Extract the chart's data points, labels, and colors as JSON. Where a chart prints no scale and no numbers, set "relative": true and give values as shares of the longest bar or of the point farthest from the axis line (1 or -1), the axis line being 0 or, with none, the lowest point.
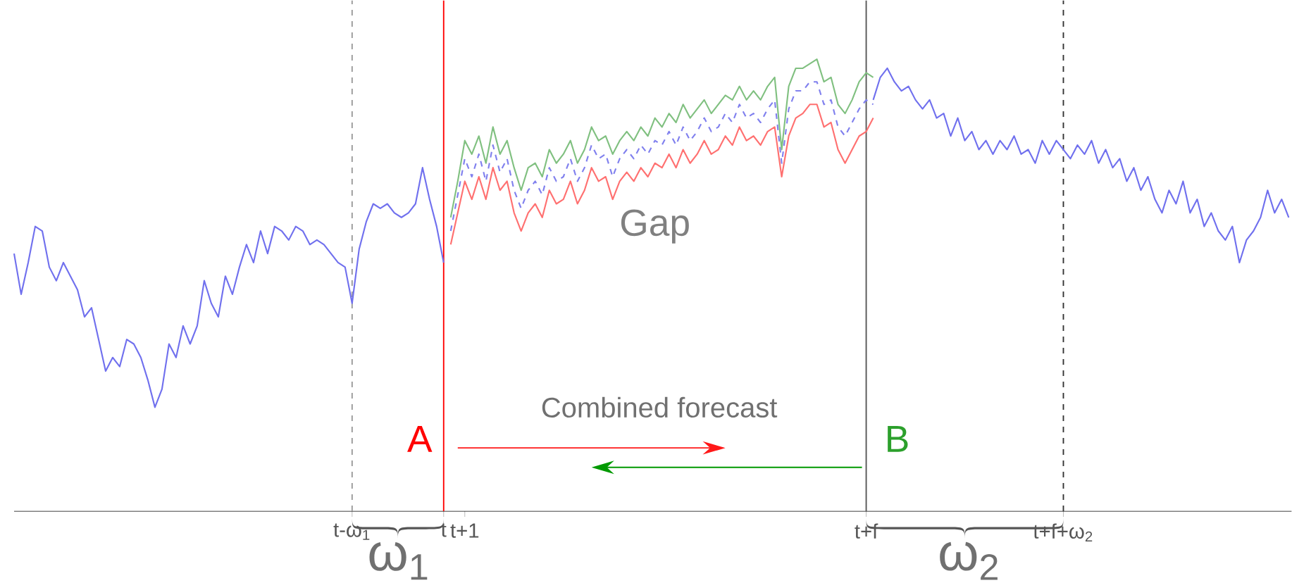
{
  "chart_data": {
    "type": "line",
    "relative": true,
    "categories": [
      null,
      null,
      null,
      null,
      null,
      null,
      null,
      null,
      null,
      null,
      null,
      null,
      null,
      null,
      null,
      null,
      null,
      null,
      null,
      null,
      null,
      null,
      null,
      null,
      null,
      null,
      null,
      null,
      null,
      null,
      null,
      null,
      null,
      null,
      null,
      null,
      null,
      null,
      null,
      null,
      null,
      null,
      null,
      null,
      null,
      null,
      null,
      null,
      "t-ω$_{1}$",
      null,
      null,
      null,
      null,
      null,
      null,
      null,
      null,
      null,
      null,
      null,
      null,
      "t",
      null,
      null,
      "t+1",
      null,
      null,
      null,
      null,
      null,
      null,
      null,
      null,
      null,
      null,
      null,
      null,
      null,
      null,
      null,
      null,
      null,
      null,
      null,
      null,
      null,
      null,
      null,
      null,
      null,
      null,
      null,
      null,
      null,
      null,
      null,
      null,
      null,
      null,
      null,
      null,
      null,
      null,
      null,
      null,
      null,
      null,
      null,
      null,
      null,
      null,
      null,
      null,
      null,
      null,
      null,
      null,
      null,
      null,
      null,
      null,
      "t+f",
      null,
      null,
      null,
      null,
      null,
      null,
      null,
      null,
      null,
      null,
      null,
      null,
      null,
      null,
      null,
      null,
      null,
      null,
      null,
      null,
      null,
      null,
      null,
      null,
      null,
      null,
      null,
      "t+f+ω$_{2}$",
      null,
      null,
      null,
      null,
      null,
      null,
      null,
      null,
      null,
      null,
      null,
      null,
      null,
      null,
      null,
      null,
      null,
      null,
      null,
      null,
      null,
      null,
      null,
      null,
      null,
      null,
      null,
      null,
      null,
      null,
      null,
      null
    ],
    "series": [
      {
        "color": "#7070ee",
        "line_style": "solid",
        "values": [
          0.57,
          0.48,
          0.55,
          0.63,
          0.62,
          0.54,
          0.51,
          0.55,
          0.52,
          0.49,
          0.43,
          0.45,
          0.38,
          0.31,
          0.34,
          0.32,
          0.38,
          0.37,
          0.34,
          0.29,
          0.23,
          0.27,
          0.37,
          0.34,
          0.41,
          0.37,
          0.41,
          0.51,
          0.46,
          0.43,
          0.52,
          0.48,
          0.54,
          0.59,
          0.55,
          0.62,
          0.57,
          0.63,
          0.62,
          0.6,
          0.63,
          0.62,
          0.59,
          0.6,
          0.59,
          0.57,
          0.55,
          0.54,
          0.46,
          0.58,
          0.64,
          0.68,
          0.67,
          0.68,
          0.66,
          0.65,
          0.66,
          0.68,
          0.76,
          0.69,
          0.63,
          0.55,
          null,
          null,
          null,
          null,
          null,
          null,
          null,
          null,
          null,
          null,
          null,
          null,
          null,
          null,
          null,
          null,
          null,
          null,
          null,
          null,
          null,
          null,
          null,
          null,
          null,
          null,
          null,
          null,
          null,
          null,
          null,
          null,
          null,
          null,
          null,
          null,
          null,
          null,
          null,
          null,
          null,
          null,
          null,
          null,
          null,
          null,
          null,
          null,
          null,
          null,
          null,
          null,
          null,
          null,
          null,
          null,
          null,
          null,
          null,
          null,
          null,
          null,
          null,
          null,
          null,
          null,
          null,
          null,
          null,
          null,
          null,
          null,
          null,
          null,
          null,
          null,
          null,
          null,
          null,
          null,
          null,
          null,
          null,
          null,
          null,
          null,
          null,
          null,
          null,
          null,
          null,
          null,
          null,
          null,
          null,
          null,
          null,
          null,
          null,
          null,
          null,
          null,
          null,
          null,
          null,
          null,
          null,
          null,
          null,
          null,
          null,
          null,
          null,
          null,
          null,
          null,
          null,
          null,
          null,
          null
        ]
      },
      {
        "color": "#80c080",
        "line_style": "solid",
        "values": [
          null,
          null,
          null,
          null,
          null,
          null,
          null,
          null,
          null,
          null,
          null,
          null,
          null,
          null,
          null,
          null,
          null,
          null,
          null,
          null,
          null,
          null,
          null,
          null,
          null,
          null,
          null,
          null,
          null,
          null,
          null,
          null,
          null,
          null,
          null,
          null,
          null,
          null,
          null,
          null,
          null,
          null,
          null,
          null,
          null,
          null,
          null,
          null,
          null,
          null,
          null,
          null,
          null,
          null,
          null,
          null,
          null,
          null,
          null,
          null,
          null,
          null,
          0.65,
          0.73,
          0.82,
          0.79,
          0.83,
          0.77,
          0.85,
          0.79,
          0.82,
          0.76,
          0.71,
          0.76,
          0.77,
          0.74,
          0.8,
          0.77,
          0.79,
          0.82,
          0.77,
          0.8,
          0.85,
          0.82,
          0.83,
          0.79,
          0.82,
          0.84,
          0.82,
          0.85,
          0.83,
          0.87,
          0.85,
          0.88,
          0.86,
          0.9,
          0.87,
          0.89,
          0.91,
          0.88,
          0.9,
          0.92,
          0.91,
          0.94,
          0.91,
          0.93,
          0.91,
          0.94,
          0.96,
          0.8,
          0.94,
          0.98,
          0.98,
          0.99,
          1.0,
          0.95,
          0.96,
          0.9,
          0.88,
          0.91,
          0.95,
          0.97,
          0.96,
          null,
          null,
          null,
          null,
          null,
          null,
          null,
          null,
          null,
          null,
          null,
          null,
          null,
          null,
          null,
          null,
          null,
          null,
          null,
          null,
          null,
          null,
          null,
          null,
          null,
          null,
          null,
          null,
          null,
          null,
          null,
          null,
          null,
          null,
          null,
          null,
          null,
          null,
          null,
          null,
          null,
          null,
          null,
          null,
          null,
          null,
          null,
          null,
          null,
          null,
          null,
          null,
          null,
          null,
          null,
          null,
          null,
          null,
          null
        ]
      },
      {
        "color": "#ff7070",
        "line_style": "solid",
        "values": [
          null,
          null,
          null,
          null,
          null,
          null,
          null,
          null,
          null,
          null,
          null,
          null,
          null,
          null,
          null,
          null,
          null,
          null,
          null,
          null,
          null,
          null,
          null,
          null,
          null,
          null,
          null,
          null,
          null,
          null,
          null,
          null,
          null,
          null,
          null,
          null,
          null,
          null,
          null,
          null,
          null,
          null,
          null,
          null,
          null,
          null,
          null,
          null,
          null,
          null,
          null,
          null,
          null,
          null,
          null,
          null,
          null,
          null,
          null,
          null,
          null,
          null,
          0.59,
          0.66,
          0.73,
          0.69,
          0.74,
          0.69,
          0.76,
          0.71,
          0.73,
          0.66,
          0.62,
          0.66,
          0.68,
          0.65,
          0.71,
          0.68,
          0.69,
          0.73,
          0.68,
          0.71,
          0.76,
          0.73,
          0.74,
          0.69,
          0.73,
          0.75,
          0.73,
          0.76,
          0.74,
          0.77,
          0.76,
          0.79,
          0.76,
          0.8,
          0.77,
          0.79,
          0.82,
          0.79,
          0.8,
          0.83,
          0.81,
          0.85,
          0.82,
          0.83,
          0.81,
          0.84,
          0.85,
          0.74,
          0.83,
          0.87,
          0.88,
          0.9,
          0.9,
          0.85,
          0.86,
          0.8,
          0.77,
          0.8,
          0.83,
          0.84,
          0.87,
          null,
          null,
          null,
          null,
          null,
          null,
          null,
          null,
          null,
          null,
          null,
          null,
          null,
          null,
          null,
          null,
          null,
          null,
          null,
          null,
          null,
          null,
          null,
          null,
          null,
          null,
          null,
          null,
          null,
          null,
          null,
          null,
          null,
          null,
          null,
          null,
          null,
          null,
          null,
          null,
          null,
          null,
          null,
          null,
          null,
          null,
          null,
          null,
          null,
          null,
          null,
          null,
          null,
          null,
          null,
          null,
          null,
          null,
          null
        ]
      },
      {
        "color": "#8080ee",
        "line_style": "dashed",
        "values": [
          null,
          null,
          null,
          null,
          null,
          null,
          null,
          null,
          null,
          null,
          null,
          null,
          null,
          null,
          null,
          null,
          null,
          null,
          null,
          null,
          null,
          null,
          null,
          null,
          null,
          null,
          null,
          null,
          null,
          null,
          null,
          null,
          null,
          null,
          null,
          null,
          null,
          null,
          null,
          null,
          null,
          null,
          null,
          null,
          null,
          null,
          null,
          null,
          null,
          null,
          null,
          null,
          null,
          null,
          null,
          null,
          null,
          null,
          null,
          null,
          null,
          null,
          0.62,
          0.7,
          0.78,
          0.74,
          0.79,
          0.73,
          0.81,
          0.75,
          0.78,
          0.71,
          0.67,
          0.71,
          0.73,
          0.7,
          0.76,
          0.73,
          0.74,
          0.78,
          0.73,
          0.76,
          0.81,
          0.78,
          0.79,
          0.74,
          0.78,
          0.8,
          0.78,
          0.81,
          0.79,
          0.82,
          0.81,
          0.84,
          0.81,
          0.85,
          0.82,
          0.84,
          0.87,
          0.84,
          0.85,
          0.88,
          0.86,
          0.9,
          0.87,
          0.88,
          0.86,
          0.89,
          0.91,
          0.77,
          0.89,
          0.93,
          0.93,
          0.95,
          0.95,
          0.9,
          0.91,
          0.85,
          0.83,
          0.86,
          0.89,
          0.91,
          0.9,
          null,
          null,
          null,
          null,
          null,
          null,
          null,
          null,
          null,
          null,
          null,
          null,
          null,
          null,
          null,
          null,
          null,
          null,
          null,
          null,
          null,
          null,
          null,
          null,
          null,
          null,
          null,
          null,
          null,
          null,
          null,
          null,
          null,
          null,
          null,
          null,
          null,
          null,
          null,
          null,
          null,
          null,
          null,
          null,
          null,
          null,
          null,
          null,
          null,
          null,
          null,
          null,
          null,
          null,
          null,
          null,
          null,
          null,
          null
        ]
      },
      {
        "color": "#7070ee",
        "line_style": "solid",
        "values": [
          null,
          null,
          null,
          null,
          null,
          null,
          null,
          null,
          null,
          null,
          null,
          null,
          null,
          null,
          null,
          null,
          null,
          null,
          null,
          null,
          null,
          null,
          null,
          null,
          null,
          null,
          null,
          null,
          null,
          null,
          null,
          null,
          null,
          null,
          null,
          null,
          null,
          null,
          null,
          null,
          null,
          null,
          null,
          null,
          null,
          null,
          null,
          null,
          null,
          null,
          null,
          null,
          null,
          null,
          null,
          null,
          null,
          null,
          null,
          null,
          null,
          null,
          null,
          null,
          null,
          null,
          null,
          null,
          null,
          null,
          null,
          null,
          null,
          null,
          null,
          null,
          null,
          null,
          null,
          null,
          null,
          null,
          null,
          null,
          null,
          null,
          null,
          null,
          null,
          null,
          null,
          null,
          null,
          null,
          null,
          null,
          null,
          null,
          null,
          null,
          null,
          null,
          null,
          null,
          null,
          null,
          null,
          null,
          null,
          null,
          null,
          null,
          null,
          null,
          null,
          null,
          null,
          null,
          null,
          null,
          null,
          null,
          0.91,
          0.96,
          0.98,
          0.95,
          0.93,
          0.94,
          0.91,
          0.89,
          0.91,
          0.87,
          0.88,
          0.83,
          0.87,
          0.82,
          0.84,
          0.8,
          0.82,
          0.79,
          0.82,
          0.8,
          0.83,
          0.79,
          0.8,
          0.77,
          0.82,
          0.79,
          0.82,
          0.8,
          0.78,
          0.81,
          0.79,
          0.82,
          0.77,
          0.8,
          0.76,
          0.78,
          0.73,
          0.76,
          0.71,
          0.74,
          0.69,
          0.66,
          0.71,
          0.68,
          0.73,
          0.66,
          0.69,
          0.63,
          0.66,
          0.62,
          0.6,
          0.63,
          0.55,
          0.6,
          0.62,
          0.65,
          0.71,
          0.66,
          0.69,
          0.65
        ]
      }
    ],
    "ref_lines": [
      {
        "axis": "x",
        "value": "t-ω$_{1}$",
        "color": "#999999",
        "line_style": "dashed"
      },
      {
        "axis": "x",
        "value": "t",
        "color": "#ff0000",
        "line_style": "solid"
      },
      {
        "axis": "x",
        "value": "t+f",
        "color": "#555555",
        "line_style": "solid"
      },
      {
        "axis": "x",
        "value": "t+f+ω$_{2}$",
        "color": "#333333",
        "line_style": "dashed"
      }
    ],
    "annotations": [
      "A",
      "B",
      "Gap",
      "Combined forecast",
      "ω$_{1}$",
      "ω$_{2}$"
    ]
  }
}
